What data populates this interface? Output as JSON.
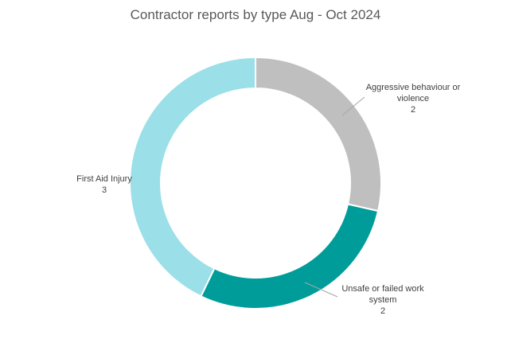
{
  "chart_data": {
    "type": "pie",
    "subtype": "doughnut",
    "title": "Contractor reports by type Aug - Oct 2024",
    "slices": [
      {
        "label_lines": [
          "Aggressive behaviour or",
          "violence"
        ],
        "value": 2,
        "color": "#bfbfbf"
      },
      {
        "label_lines": [
          "Unsafe or failed work",
          "system"
        ],
        "value": 2,
        "color": "#009c9a"
      },
      {
        "label_lines": [
          "First Aid Injury"
        ],
        "value": 3,
        "color": "#9bdfe8"
      }
    ],
    "legend": "none"
  }
}
